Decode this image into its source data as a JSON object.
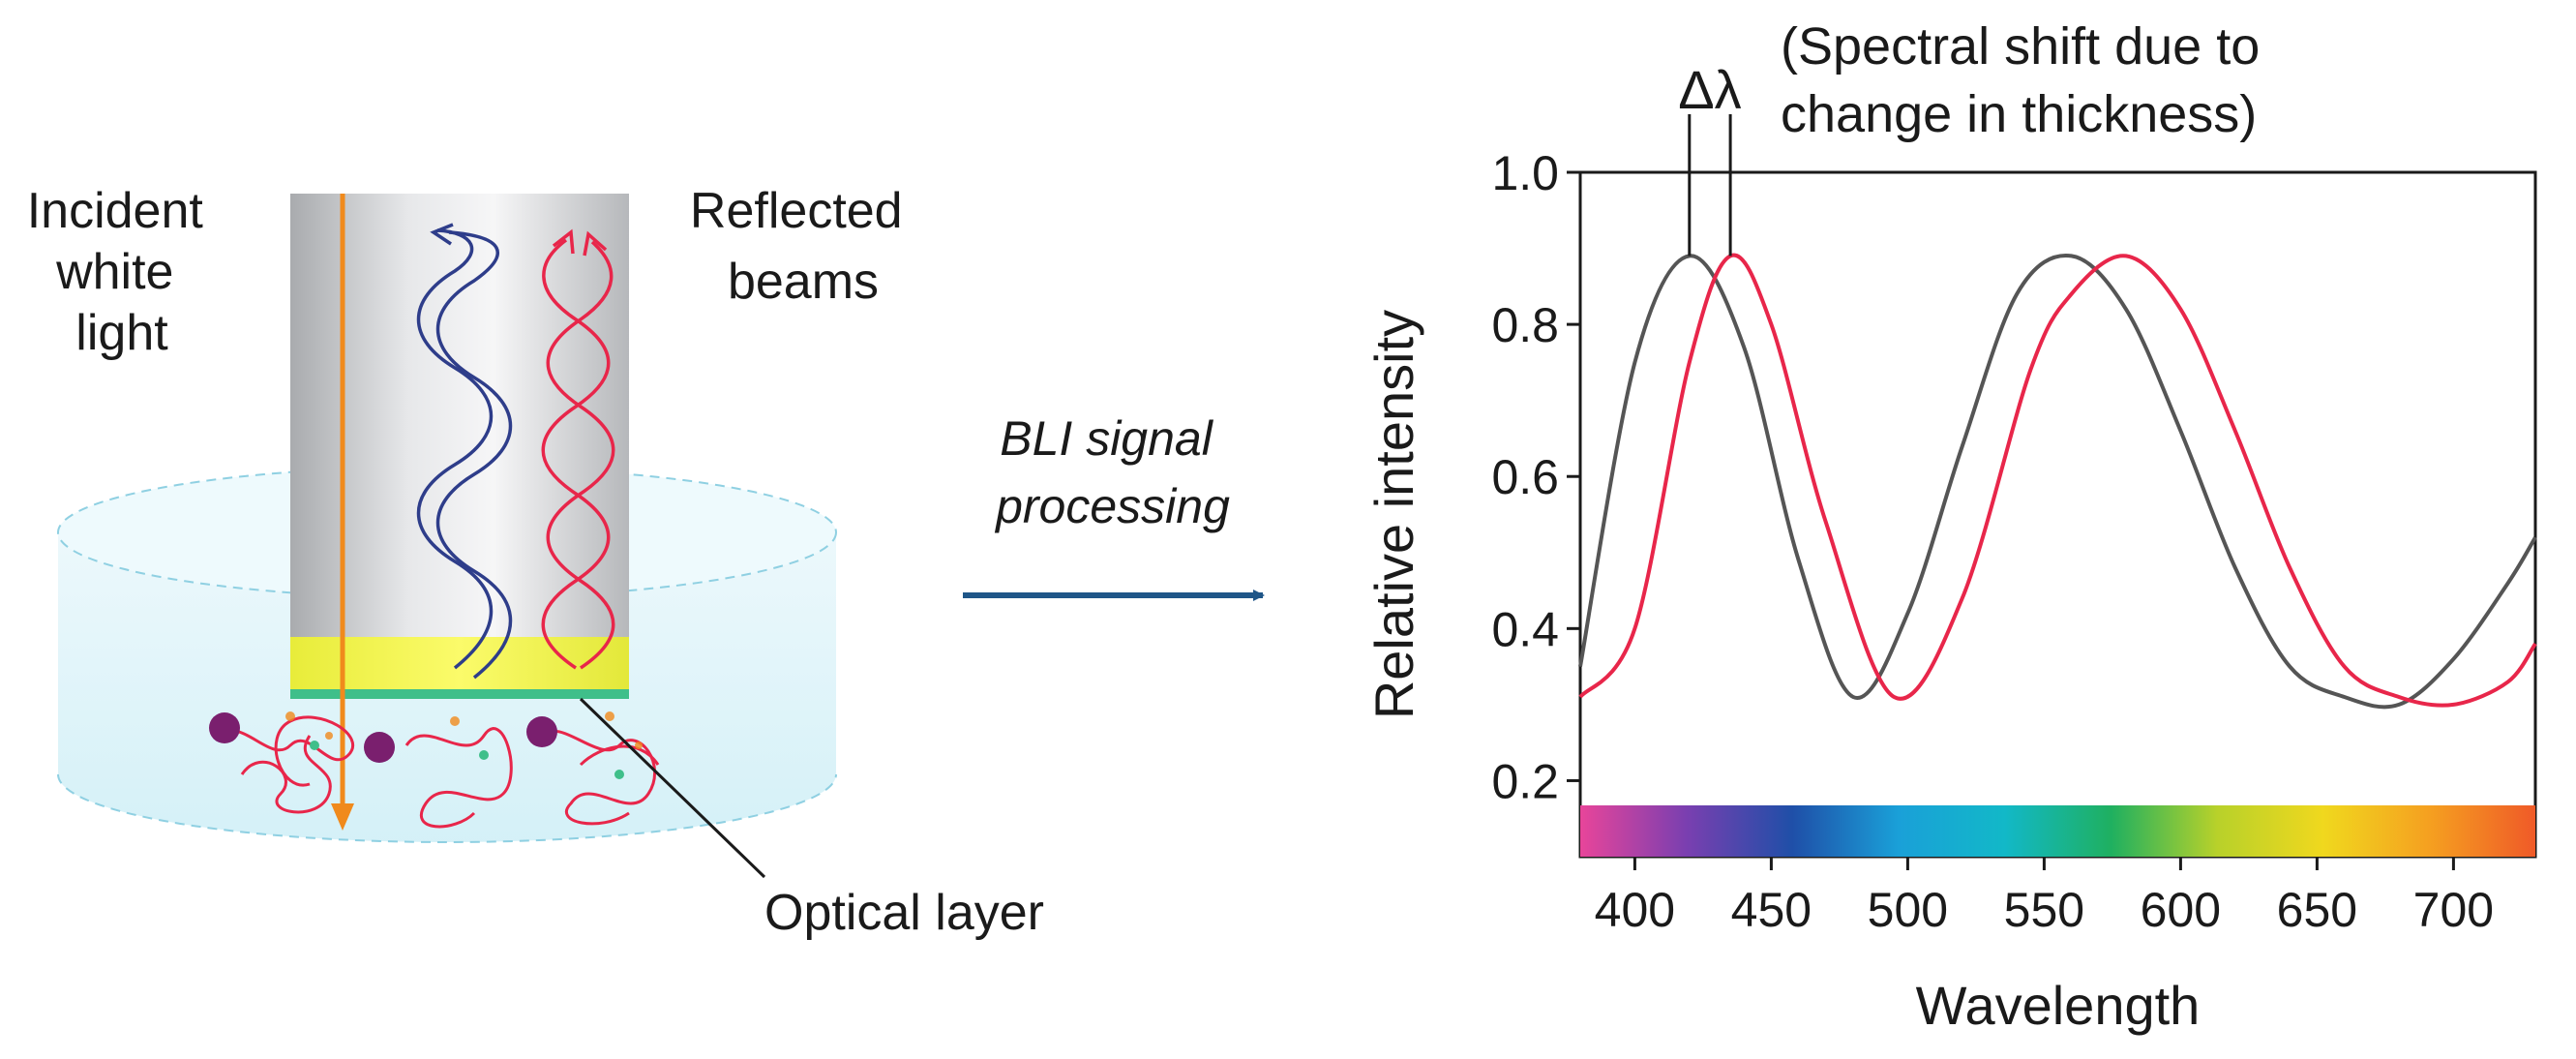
{
  "left_panel": {
    "incident_label": [
      "Incident",
      "white",
      "light"
    ],
    "reflected_label": [
      "Reflected",
      "beams"
    ],
    "optical_layer_label": "Optical layer"
  },
  "arrow": {
    "label_lines": [
      "BLI signal",
      "processing"
    ]
  },
  "chart_data": {
    "type": "line",
    "xlabel": "Wavelength",
    "ylabel": "Relative intensity",
    "xlim": [
      380,
      730
    ],
    "ylim": [
      0.1,
      1.0
    ],
    "xticks": [
      400,
      450,
      500,
      550,
      600,
      650,
      700
    ],
    "yticks": [
      0.2,
      0.4,
      0.6,
      0.8,
      1.0
    ],
    "ytick_labels": [
      "0.2",
      "0.4",
      "0.6",
      "0.8",
      "1.0"
    ],
    "annotation_symbol": "Δλ",
    "annotation_text": [
      "(Spectral shift due to",
      "change in thickness)"
    ],
    "series": [
      {
        "color": "#555555",
        "x": [
          380,
          400,
          420,
          440,
          460,
          480,
          500,
          520,
          540,
          560,
          580,
          600,
          620,
          640,
          660,
          680,
          700,
          720,
          730
        ],
        "y": [
          0.35,
          0.75,
          0.89,
          0.77,
          0.49,
          0.31,
          0.42,
          0.64,
          0.84,
          0.89,
          0.82,
          0.66,
          0.48,
          0.35,
          0.31,
          0.3,
          0.36,
          0.46,
          0.52
        ]
      },
      {
        "color": "#e8264a",
        "x": [
          380,
          400,
          420,
          435,
          450,
          470,
          495,
          520,
          545,
          560,
          580,
          600,
          620,
          640,
          660,
          680,
          700,
          720,
          730
        ],
        "y": [
          0.31,
          0.4,
          0.75,
          0.89,
          0.8,
          0.54,
          0.31,
          0.44,
          0.74,
          0.84,
          0.89,
          0.82,
          0.66,
          0.48,
          0.35,
          0.31,
          0.3,
          0.33,
          0.38
        ]
      }
    ],
    "spectrum_bar_colors": [
      "#e8459a",
      "#7a3fb0",
      "#1f4fa8",
      "#1aa0d8",
      "#12b8c8",
      "#1fb060",
      "#b8d12a",
      "#f0d81e",
      "#f5a020",
      "#ef5a28"
    ]
  }
}
